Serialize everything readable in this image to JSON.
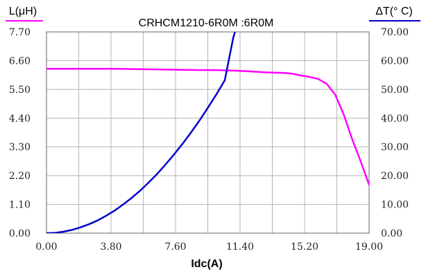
{
  "chart_data": {
    "type": "line",
    "title": "CRHCM1210-6R0M :6R0M",
    "xlabel": "Idc(A)",
    "ylabel_left": "L(μH)",
    "ylabel_right": "ΔT(° C)",
    "xlim": [
      0,
      19
    ],
    "ylim_left": [
      0,
      7.7
    ],
    "ylim_right": [
      0,
      70
    ],
    "x_ticks": [
      "0.00",
      "3.80",
      "7.60",
      "11.40",
      "15.20",
      "19.00"
    ],
    "y_ticks_left": [
      "0.00",
      "1.10",
      "2.20",
      "3.30",
      "4.40",
      "5.50",
      "6.60",
      "7.70"
    ],
    "y_ticks_right": [
      "0.00",
      "10.00",
      "20.00",
      "30.00",
      "40.00",
      "50.00",
      "60.00",
      "70.00"
    ],
    "grid": true,
    "colors": {
      "inductance": "#ff00ff",
      "temperature": "#0000cc",
      "grid": "#b4b4b4",
      "axis": "#666666"
    },
    "series": [
      {
        "axis": "left",
        "x": [
          0,
          1,
          2,
          3,
          4,
          5,
          6,
          7,
          8,
          9,
          10,
          11,
          12,
          13,
          14,
          14.5,
          15,
          15.5,
          16,
          16.5,
          17,
          17.5,
          18,
          18.5,
          19
        ],
        "y": [
          6.29,
          6.29,
          6.29,
          6.29,
          6.29,
          6.28,
          6.27,
          6.26,
          6.25,
          6.24,
          6.24,
          6.22,
          6.19,
          6.15,
          6.13,
          6.1,
          6.03,
          5.98,
          5.9,
          5.72,
          5.3,
          4.55,
          3.6,
          2.75,
          1.85
        ]
      },
      {
        "axis": "right",
        "x": [
          0,
          0.5,
          1,
          1.5,
          2,
          2.5,
          3,
          3.5,
          4,
          4.5,
          5,
          5.5,
          6,
          6.5,
          7,
          7.5,
          8,
          8.5,
          9,
          9.5,
          10,
          10.5,
          11,
          11.1
        ],
        "y": [
          0,
          0.1,
          0.5,
          1.1,
          2,
          3.1,
          4.4,
          6,
          7.8,
          9.9,
          12.2,
          14.7,
          17.5,
          20.5,
          23.8,
          27.3,
          31,
          34.9,
          39.1,
          43.6,
          48.2,
          53.2,
          68,
          70
        ]
      }
    ]
  }
}
